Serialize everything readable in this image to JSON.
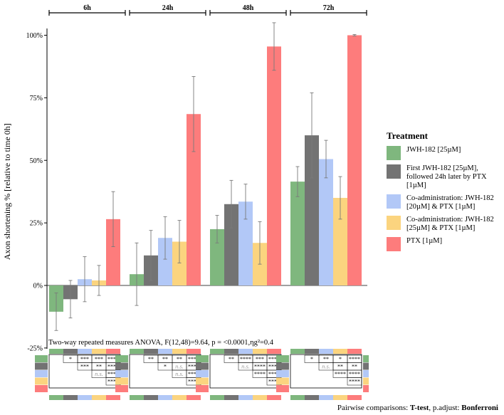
{
  "chart_data": {
    "type": "bar",
    "ylabel": "Axon shortening % [relative to time 0h]",
    "yticks": [
      "-25%",
      "0%",
      "25%",
      "50%",
      "75%",
      "100%"
    ],
    "ylim": [
      -25,
      100
    ],
    "grid": false,
    "legend_position": "right",
    "legend_title": "Treatment",
    "categories": [
      "6h",
      "24h",
      "48h",
      "72h"
    ],
    "colors": [
      "#7fb77e",
      "#737373",
      "#b2c8f7",
      "#fbd47f",
      "#fd7c7c"
    ],
    "series": [
      {
        "name": "JWH-182 [25µM]",
        "values": [
          -10.5,
          4.5,
          22.5,
          41.5
        ],
        "err": [
          7.5,
          12.5,
          5.5,
          6.0
        ]
      },
      {
        "name": "First JWH-182 [25µM], followed 24h later by PTX [1µM]",
        "values": [
          -5.5,
          12.0,
          32.5,
          60.0
        ],
        "err": [
          7.5,
          10.0,
          9.5,
          17.0
        ]
      },
      {
        "name": "Co-administration: JWH-182 [20µM] & PTX [1µM]",
        "values": [
          2.5,
          19.0,
          33.5,
          50.5
        ],
        "err": [
          9.0,
          8.5,
          7.0,
          7.5
        ]
      },
      {
        "name": "Co-administration: JWH-182 [25µM] & PTX [1µM]",
        "values": [
          2.0,
          17.5,
          17.0,
          35.0
        ],
        "err": [
          6.0,
          8.5,
          8.5,
          8.5
        ]
      },
      {
        "name": "PTX [1µM]",
        "values": [
          26.5,
          68.5,
          95.5,
          100.0
        ],
        "err": [
          11.0,
          15.0,
          9.5,
          0.3
        ]
      }
    ],
    "annotation": "Two-way repeated measures ANOVA, F(12,48)=9.64, p = <0.0001,ηg²=0.4",
    "pairwise": [
      {
        "row1": [
          "*",
          "***",
          "***",
          "****"
        ],
        "row2": [
          "***",
          "**",
          "****"
        ],
        "row3": [
          "n.s.",
          "****"
        ],
        "row4": [
          "****"
        ]
      },
      {
        "row1": [
          "**",
          "**",
          "**",
          "****"
        ],
        "row2": [
          "*",
          "n.s.",
          "****"
        ],
        "row3": [
          "n.s.",
          "****"
        ],
        "row4": [
          "****"
        ]
      },
      {
        "row1": [
          "**",
          "****",
          "***",
          "****"
        ],
        "row2": [
          "n.s.",
          "****",
          "****"
        ],
        "row3": [
          "****",
          "****"
        ],
        "row4": [
          "****"
        ]
      },
      {
        "row1": [
          "*",
          "**",
          "*",
          "****"
        ],
        "row2": [
          "n.s.",
          "**",
          "**"
        ],
        "row3": [
          "****",
          "****"
        ],
        "row4": [
          "****"
        ]
      }
    ]
  },
  "footer": {
    "prefix": "Pairwise comparisons: ",
    "test": "T-test",
    "middle": ", p.adjust: ",
    "method": "Bonferroni"
  }
}
